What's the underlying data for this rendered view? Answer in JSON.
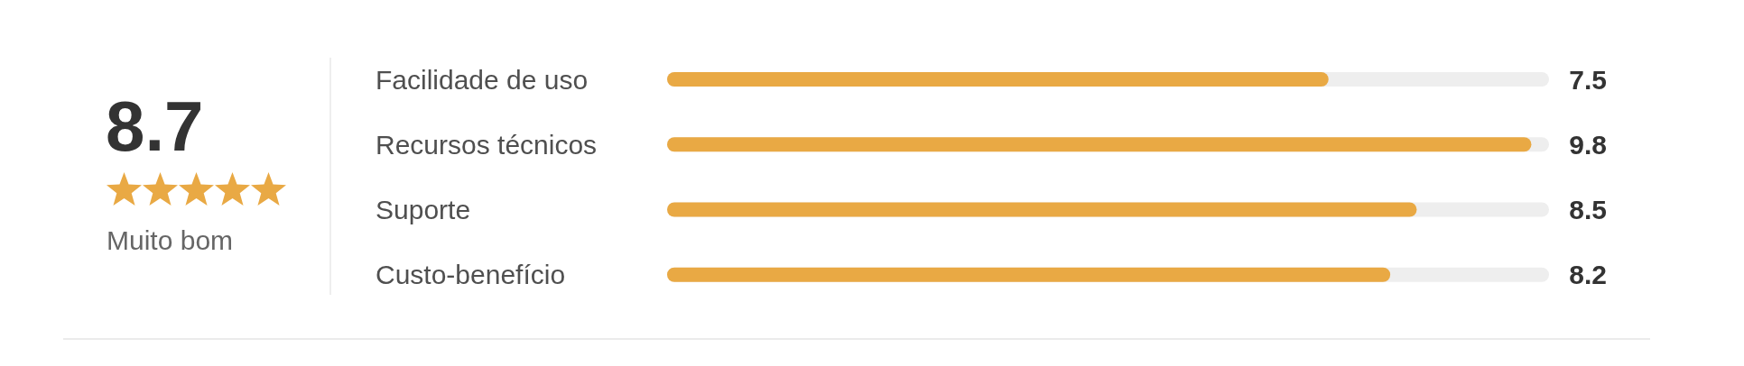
{
  "chart_data": {
    "type": "bar",
    "orientation": "horizontal",
    "categories": [
      "Facilidade de uso",
      "Recursos técnicos",
      "Suporte",
      "Custo-benefício"
    ],
    "values": [
      7.5,
      9.8,
      8.5,
      8.2
    ],
    "color": "#e9a944",
    "xlim": [
      0,
      10
    ],
    "data_labels": true,
    "tick_labels": "y",
    "annotations": [
      "8.7",
      "Muito bom"
    ]
  }
}
